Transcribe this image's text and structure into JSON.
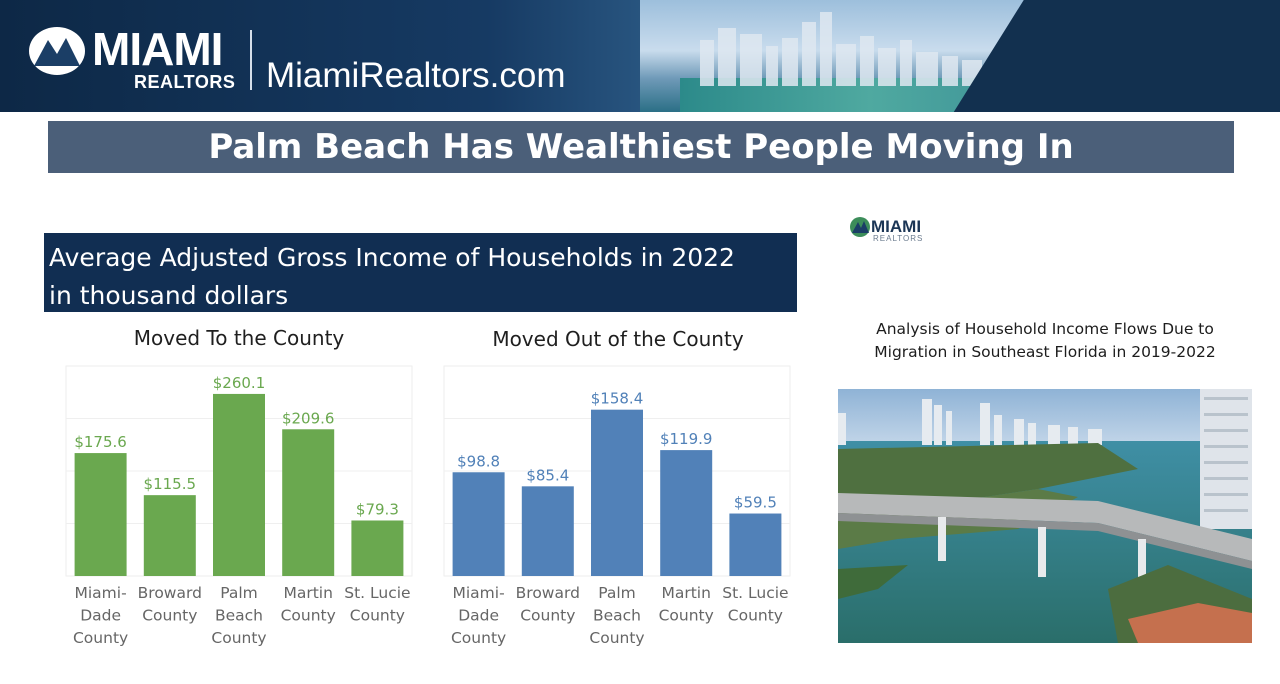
{
  "header": {
    "logo_text": "MIAMI",
    "logo_sub": "REALTORS",
    "site": "MiamiRealtors.com"
  },
  "title": "Palm Beach Has Wealthiest People Moving In",
  "subtitle_lines": [
    "Average Adjusted Gross Income of Households in 2022",
    "in thousand dollars"
  ],
  "side": {
    "logo_text": "MIAMI",
    "logo_sub": "REALTORS",
    "analysis": "Analysis of Household Income Flows Due to\nMigration in Southeast Florida in 2019-2022"
  },
  "colors": {
    "moved_to": "#6aa84f",
    "moved_out": "#5181b8",
    "title_bar": "#4b5f79",
    "subtitle_bar": "#112e52"
  },
  "chart_data": [
    {
      "type": "bar",
      "title": "Moved To the County",
      "categories": [
        [
          "Miami-",
          "Dade",
          "County"
        ],
        [
          "Broward",
          "County"
        ],
        [
          "Palm",
          "Beach",
          "County"
        ],
        [
          "Martin",
          "County"
        ],
        [
          "St. Lucie",
          "County"
        ]
      ],
      "values": [
        175.6,
        115.5,
        260.1,
        209.6,
        79.3
      ],
      "labels": [
        "$175.6",
        "$115.5",
        "$260.1",
        "$209.6",
        "$79.3"
      ],
      "color": "#6aa84f",
      "ylim": [
        0,
        300
      ],
      "grid": true
    },
    {
      "type": "bar",
      "title": "Moved Out of the County",
      "categories": [
        [
          "Miami-",
          "Dade",
          "County"
        ],
        [
          "Broward",
          "County"
        ],
        [
          "Palm",
          "Beach",
          "County"
        ],
        [
          "Martin",
          "County"
        ],
        [
          "St. Lucie",
          "County"
        ]
      ],
      "values": [
        98.8,
        85.4,
        158.4,
        119.9,
        59.5
      ],
      "labels": [
        "$98.8",
        "$85.4",
        "$158.4",
        "$119.9",
        "$59.5"
      ],
      "color": "#5181b8",
      "ylim": [
        0,
        200
      ],
      "grid": true
    }
  ]
}
